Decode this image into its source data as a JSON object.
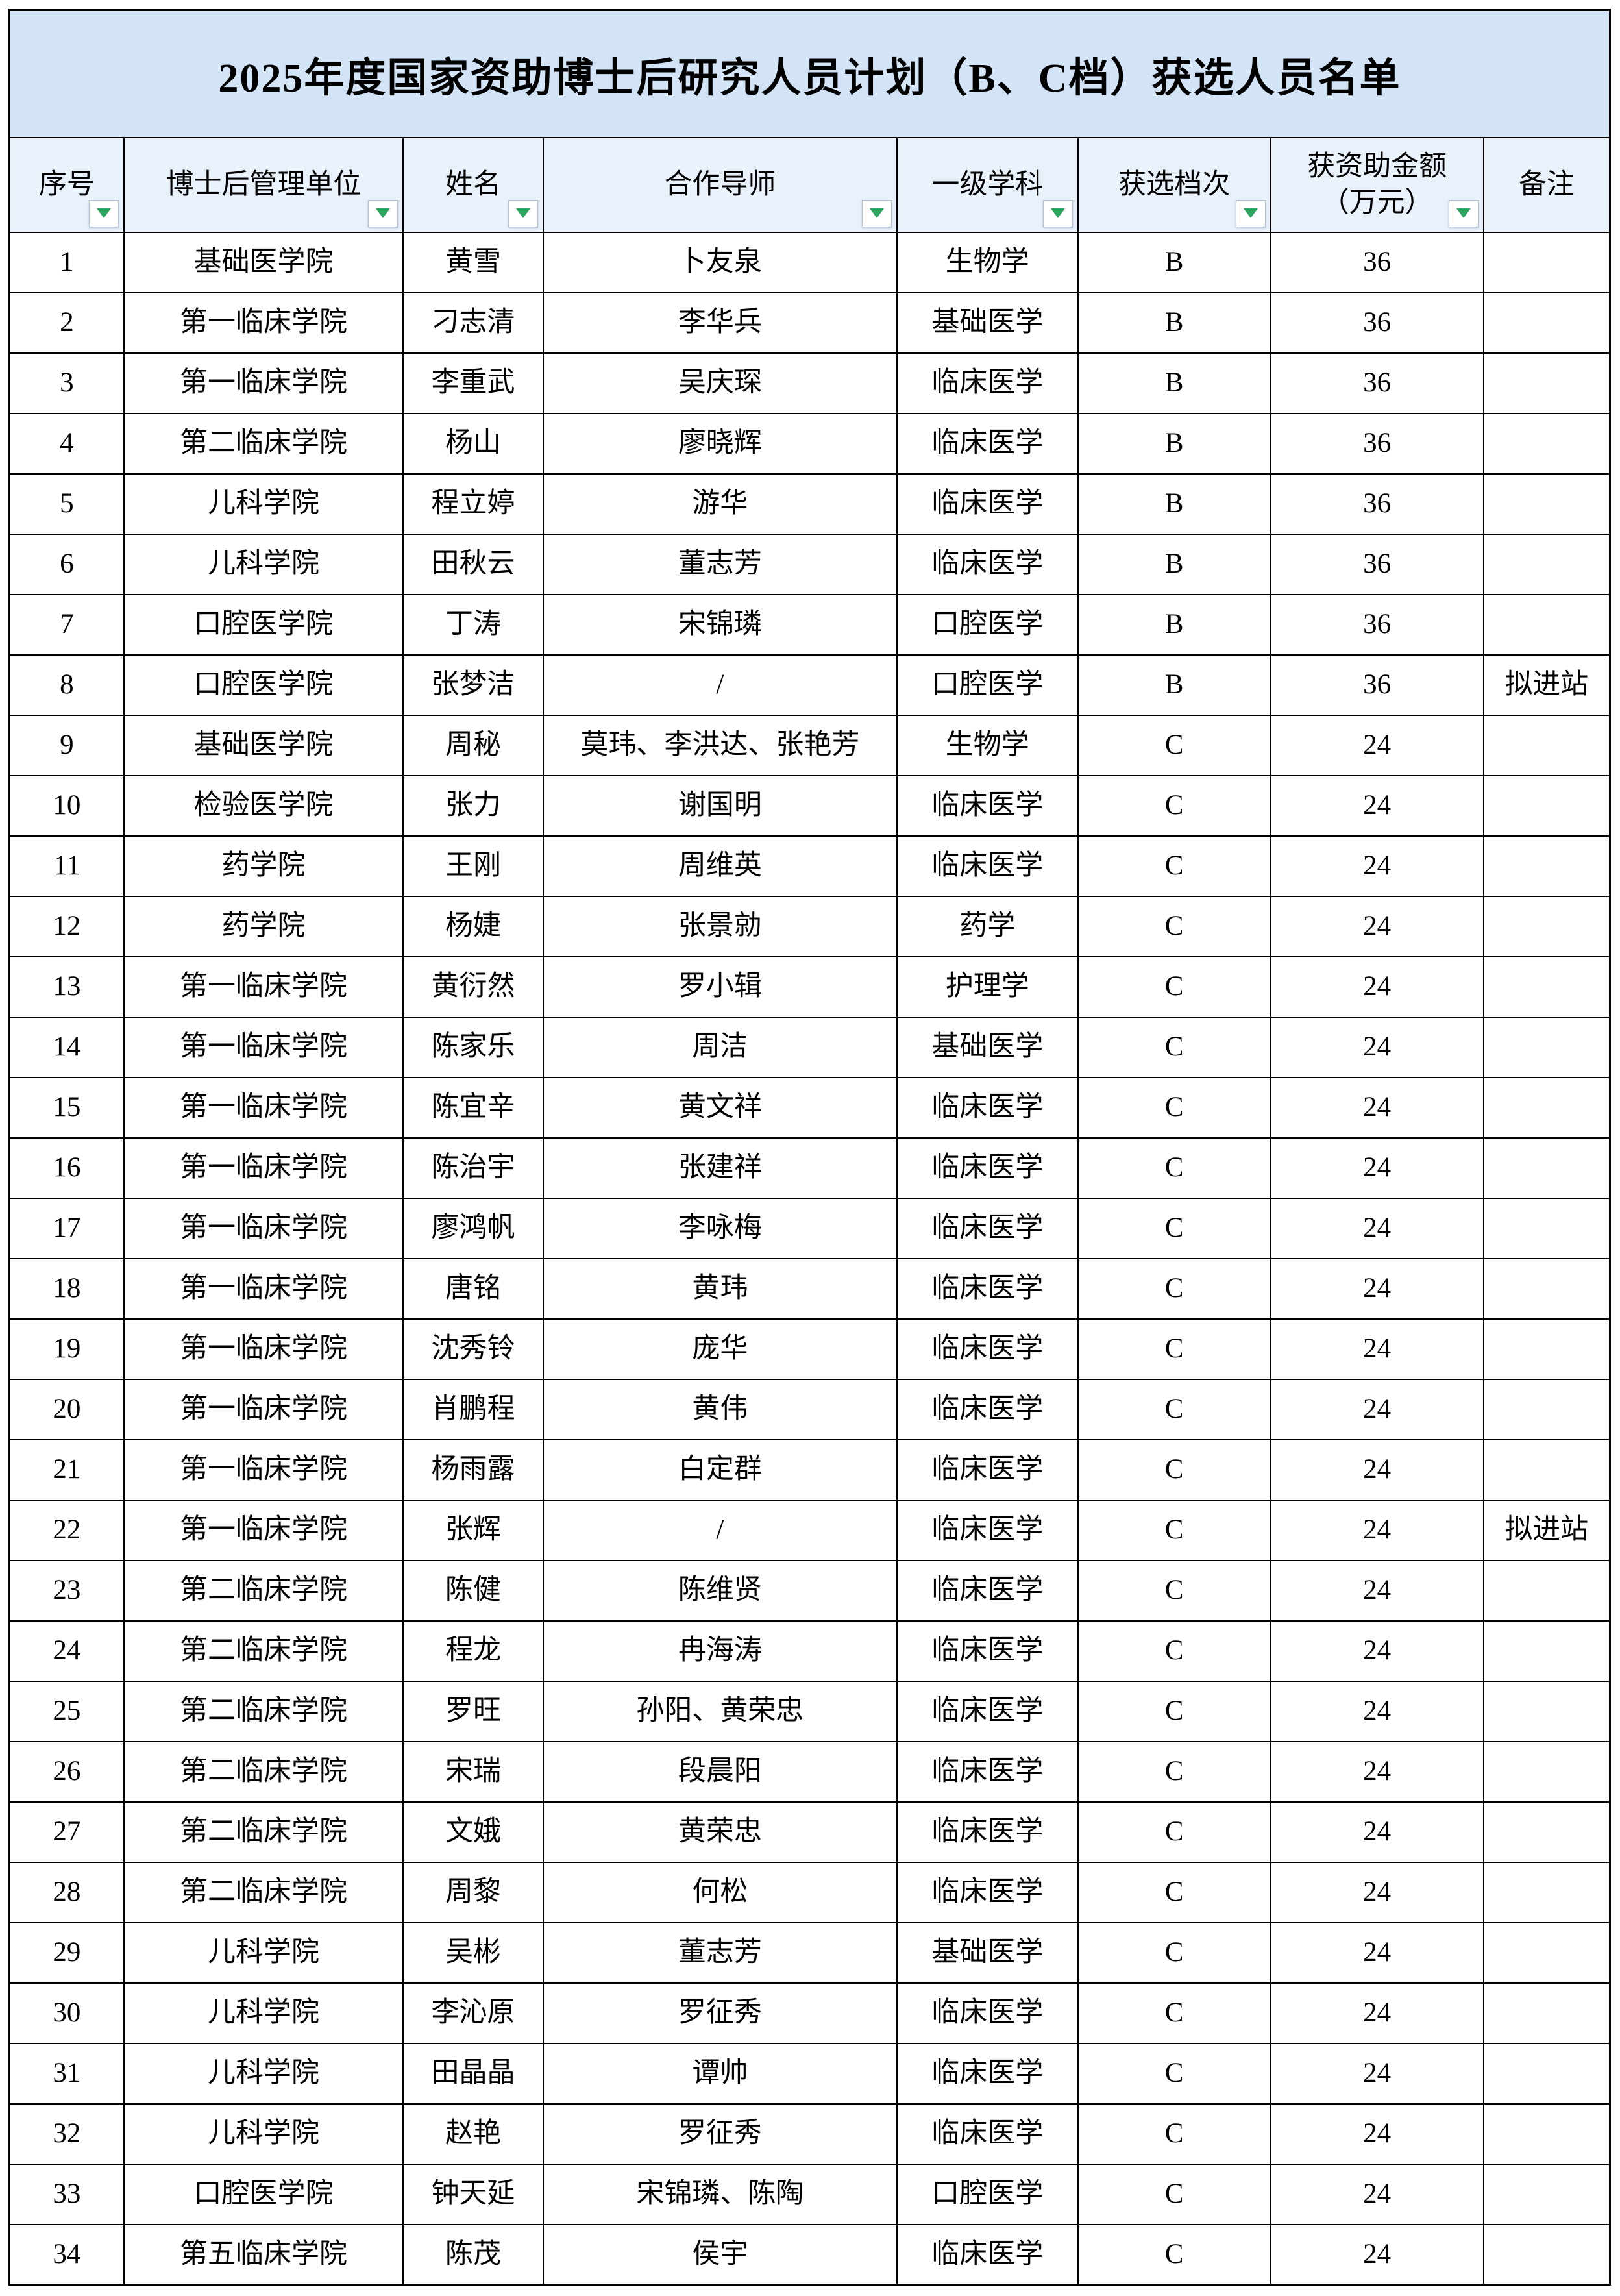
{
  "title": "2025年度国家资助博士后研究人员计划（B、C档）获选人员名单",
  "colors": {
    "title_bg": "#d3e4f6",
    "header_bg": "#e9f1fb",
    "filter_triangle_green": "#2ca75f",
    "grid_border": "#000000"
  },
  "header": {
    "columns": [
      {
        "label": "序号",
        "filter": true
      },
      {
        "label": "博士后管理单位",
        "filter": true
      },
      {
        "label": "姓名",
        "filter": true
      },
      {
        "label": "合作导师",
        "filter": true
      },
      {
        "label": "一级学科",
        "filter": true
      },
      {
        "label": "获选档次",
        "filter": true
      },
      {
        "label": "获资助金额\n（万元）",
        "filter": true
      },
      {
        "label": "备注",
        "filter": false
      }
    ]
  },
  "rows": [
    {
      "no": "1",
      "unit": "基础医学院",
      "name": "黄雪",
      "mentor": "卜友泉",
      "discipline": "生物学",
      "tier": "B",
      "amount": "36",
      "remark": ""
    },
    {
      "no": "2",
      "unit": "第一临床学院",
      "name": "刁志清",
      "mentor": "李华兵",
      "discipline": "基础医学",
      "tier": "B",
      "amount": "36",
      "remark": ""
    },
    {
      "no": "3",
      "unit": "第一临床学院",
      "name": "李重武",
      "mentor": "吴庆琛",
      "discipline": "临床医学",
      "tier": "B",
      "amount": "36",
      "remark": ""
    },
    {
      "no": "4",
      "unit": "第二临床学院",
      "name": "杨山",
      "mentor": "廖晓辉",
      "discipline": "临床医学",
      "tier": "B",
      "amount": "36",
      "remark": ""
    },
    {
      "no": "5",
      "unit": "儿科学院",
      "name": "程立婷",
      "mentor": "游华",
      "discipline": "临床医学",
      "tier": "B",
      "amount": "36",
      "remark": ""
    },
    {
      "no": "6",
      "unit": "儿科学院",
      "name": "田秋云",
      "mentor": "董志芳",
      "discipline": "临床医学",
      "tier": "B",
      "amount": "36",
      "remark": ""
    },
    {
      "no": "7",
      "unit": "口腔医学院",
      "name": "丁涛",
      "mentor": "宋锦璘",
      "discipline": "口腔医学",
      "tier": "B",
      "amount": "36",
      "remark": ""
    },
    {
      "no": "8",
      "unit": "口腔医学院",
      "name": "张梦洁",
      "mentor": "/",
      "discipline": "口腔医学",
      "tier": "B",
      "amount": "36",
      "remark": "拟进站"
    },
    {
      "no": "9",
      "unit": "基础医学院",
      "name": "周秘",
      "mentor": "莫玮、李洪达、张艳芳",
      "discipline": "生物学",
      "tier": "C",
      "amount": "24",
      "remark": ""
    },
    {
      "no": "10",
      "unit": "检验医学院",
      "name": "张力",
      "mentor": "谢国明",
      "discipline": "临床医学",
      "tier": "C",
      "amount": "24",
      "remark": ""
    },
    {
      "no": "11",
      "unit": "药学院",
      "name": "王刚",
      "mentor": "周维英",
      "discipline": "临床医学",
      "tier": "C",
      "amount": "24",
      "remark": ""
    },
    {
      "no": "12",
      "unit": "药学院",
      "name": "杨婕",
      "mentor": "张景勍",
      "discipline": "药学",
      "tier": "C",
      "amount": "24",
      "remark": ""
    },
    {
      "no": "13",
      "unit": "第一临床学院",
      "name": "黄衍然",
      "mentor": "罗小辑",
      "discipline": "护理学",
      "tier": "C",
      "amount": "24",
      "remark": ""
    },
    {
      "no": "14",
      "unit": "第一临床学院",
      "name": "陈家乐",
      "mentor": "周洁",
      "discipline": "基础医学",
      "tier": "C",
      "amount": "24",
      "remark": ""
    },
    {
      "no": "15",
      "unit": "第一临床学院",
      "name": "陈宜辛",
      "mentor": "黄文祥",
      "discipline": "临床医学",
      "tier": "C",
      "amount": "24",
      "remark": ""
    },
    {
      "no": "16",
      "unit": "第一临床学院",
      "name": "陈治宇",
      "mentor": "张建祥",
      "discipline": "临床医学",
      "tier": "C",
      "amount": "24",
      "remark": ""
    },
    {
      "no": "17",
      "unit": "第一临床学院",
      "name": "廖鸿帆",
      "mentor": "李咏梅",
      "discipline": "临床医学",
      "tier": "C",
      "amount": "24",
      "remark": ""
    },
    {
      "no": "18",
      "unit": "第一临床学院",
      "name": "唐铭",
      "mentor": "黄玮",
      "discipline": "临床医学",
      "tier": "C",
      "amount": "24",
      "remark": ""
    },
    {
      "no": "19",
      "unit": "第一临床学院",
      "name": "沈秀铃",
      "mentor": "庞华",
      "discipline": "临床医学",
      "tier": "C",
      "amount": "24",
      "remark": ""
    },
    {
      "no": "20",
      "unit": "第一临床学院",
      "name": "肖鹏程",
      "mentor": "黄伟",
      "discipline": "临床医学",
      "tier": "C",
      "amount": "24",
      "remark": ""
    },
    {
      "no": "21",
      "unit": "第一临床学院",
      "name": "杨雨露",
      "mentor": "白定群",
      "discipline": "临床医学",
      "tier": "C",
      "amount": "24",
      "remark": ""
    },
    {
      "no": "22",
      "unit": "第一临床学院",
      "name": "张辉",
      "mentor": "/",
      "discipline": "临床医学",
      "tier": "C",
      "amount": "24",
      "remark": "拟进站"
    },
    {
      "no": "23",
      "unit": "第二临床学院",
      "name": "陈健",
      "mentor": "陈维贤",
      "discipline": "临床医学",
      "tier": "C",
      "amount": "24",
      "remark": ""
    },
    {
      "no": "24",
      "unit": "第二临床学院",
      "name": "程龙",
      "mentor": "冉海涛",
      "discipline": "临床医学",
      "tier": "C",
      "amount": "24",
      "remark": ""
    },
    {
      "no": "25",
      "unit": "第二临床学院",
      "name": "罗旺",
      "mentor": "孙阳、黄荣忠",
      "discipline": "临床医学",
      "tier": "C",
      "amount": "24",
      "remark": ""
    },
    {
      "no": "26",
      "unit": "第二临床学院",
      "name": "宋瑞",
      "mentor": "段晨阳",
      "discipline": "临床医学",
      "tier": "C",
      "amount": "24",
      "remark": ""
    },
    {
      "no": "27",
      "unit": "第二临床学院",
      "name": "文娥",
      "mentor": "黄荣忠",
      "discipline": "临床医学",
      "tier": "C",
      "amount": "24",
      "remark": ""
    },
    {
      "no": "28",
      "unit": "第二临床学院",
      "name": "周黎",
      "mentor": "何松",
      "discipline": "临床医学",
      "tier": "C",
      "amount": "24",
      "remark": ""
    },
    {
      "no": "29",
      "unit": "儿科学院",
      "name": "吴彬",
      "mentor": "董志芳",
      "discipline": "基础医学",
      "tier": "C",
      "amount": "24",
      "remark": ""
    },
    {
      "no": "30",
      "unit": "儿科学院",
      "name": "李沁原",
      "mentor": "罗征秀",
      "discipline": "临床医学",
      "tier": "C",
      "amount": "24",
      "remark": ""
    },
    {
      "no": "31",
      "unit": "儿科学院",
      "name": "田晶晶",
      "mentor": "谭帅",
      "discipline": "临床医学",
      "tier": "C",
      "amount": "24",
      "remark": ""
    },
    {
      "no": "32",
      "unit": "儿科学院",
      "name": "赵艳",
      "mentor": "罗征秀",
      "discipline": "临床医学",
      "tier": "C",
      "amount": "24",
      "remark": ""
    },
    {
      "no": "33",
      "unit": "口腔医学院",
      "name": "钟天延",
      "mentor": "宋锦璘、陈陶",
      "discipline": "口腔医学",
      "tier": "C",
      "amount": "24",
      "remark": ""
    },
    {
      "no": "34",
      "unit": "第五临床学院",
      "name": "陈茂",
      "mentor": "侯宇",
      "discipline": "临床医学",
      "tier": "C",
      "amount": "24",
      "remark": ""
    }
  ]
}
